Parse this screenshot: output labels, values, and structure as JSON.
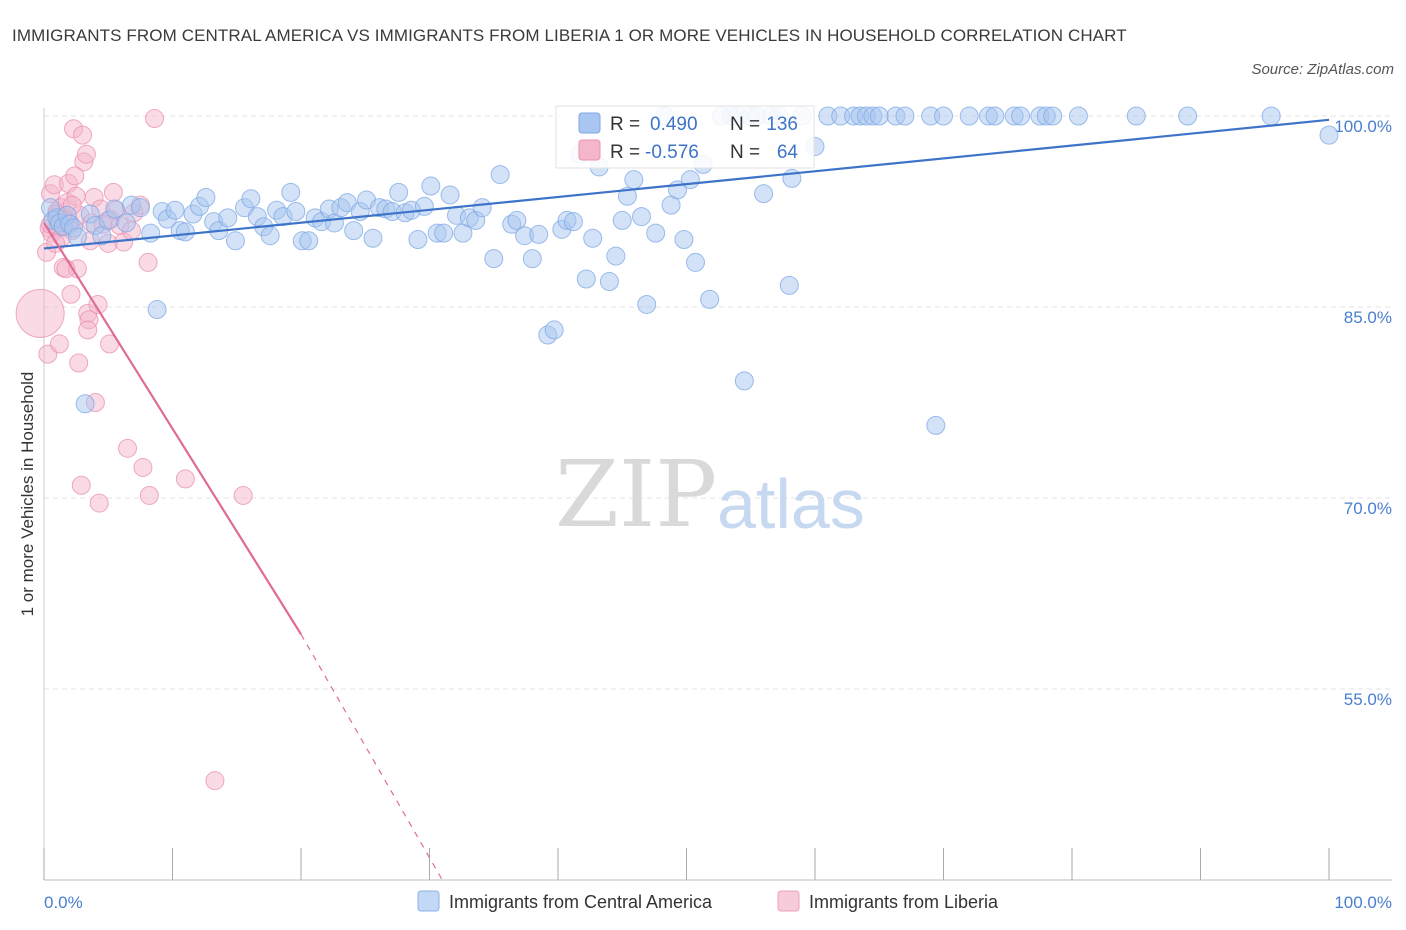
{
  "title": "IMMIGRANTS FROM CENTRAL AMERICA VS IMMIGRANTS FROM LIBERIA 1 OR MORE VEHICLES IN HOUSEHOLD CORRELATION CHART",
  "source": "Source: ZipAtlas.com",
  "watermark": {
    "zip": "ZIP",
    "atlas": "atlas"
  },
  "colors": {
    "blue": "#3d74c8",
    "blue_fill": "#a8c6f0",
    "pink": "#e06b97",
    "pink_fill": "#f4b6cb",
    "grid": "#e3e3e3",
    "axis_text": "#4a7fcf"
  },
  "stats": {
    "blue": {
      "r_label": "R =",
      "r_value": "0.490",
      "n_label": "N =",
      "n_value": "136"
    },
    "pink": {
      "r_label": "R =",
      "r_value": "-0.576",
      "n_label": "N =",
      "n_value": "64"
    }
  },
  "legend": {
    "blue_label": "Immigrants from Central America",
    "pink_label": "Immigrants from Liberia"
  },
  "chart_data": {
    "type": "scatter",
    "title": "IMMIGRANTS FROM CENTRAL AMERICA VS IMMIGRANTS FROM LIBERIA 1 OR MORE VEHICLES IN HOUSEHOLD CORRELATION CHART",
    "xlabel": "",
    "ylabel": "1 or more Vehicles in Household",
    "x_range": [
      0,
      100
    ],
    "y_range": [
      40,
      100
    ],
    "x_ticks": [
      "0.0%",
      "100.0%"
    ],
    "y_ticks": [
      {
        "value": 100,
        "label": "100.0%"
      },
      {
        "value": 85,
        "label": "85.0%"
      },
      {
        "value": 70,
        "label": "70.0%"
      },
      {
        "value": 55,
        "label": "55.0%"
      }
    ],
    "grid": true,
    "legend_position": "bottom",
    "series": [
      {
        "name": "Immigrants from Central America",
        "color": "#3d74c8",
        "trend": {
          "x": [
            0,
            100
          ],
          "y": [
            89.6,
            99.7
          ]
        },
        "points": [
          [
            0.5,
            92.8
          ],
          [
            0.7,
            91.8
          ],
          [
            1.0,
            92.0
          ],
          [
            1.2,
            91.6
          ],
          [
            1.5,
            91.3
          ],
          [
            1.8,
            92.2
          ],
          [
            2.0,
            91.5
          ],
          [
            2.3,
            91.2
          ],
          [
            2.6,
            90.5
          ],
          [
            3.2,
            77.4
          ],
          [
            3.6,
            92.3
          ],
          [
            4.0,
            91.4
          ],
          [
            4.5,
            90.6
          ],
          [
            5.0,
            91.8
          ],
          [
            5.5,
            92.7
          ],
          [
            6.4,
            91.6
          ],
          [
            6.8,
            93.0
          ],
          [
            7.5,
            92.8
          ],
          [
            8.3,
            90.8
          ],
          [
            8.8,
            84.8
          ],
          [
            9.2,
            92.5
          ],
          [
            9.6,
            91.9
          ],
          [
            10.2,
            92.6
          ],
          [
            10.6,
            91.0
          ],
          [
            11.0,
            90.9
          ],
          [
            11.6,
            92.3
          ],
          [
            12.1,
            92.9
          ],
          [
            12.6,
            93.6
          ],
          [
            13.2,
            91.7
          ],
          [
            13.6,
            91.0
          ],
          [
            14.3,
            92.0
          ],
          [
            14.9,
            90.2
          ],
          [
            15.6,
            92.8
          ],
          [
            16.1,
            93.5
          ],
          [
            16.6,
            92.1
          ],
          [
            17.1,
            91.3
          ],
          [
            17.6,
            90.6
          ],
          [
            18.1,
            92.6
          ],
          [
            18.6,
            92.1
          ],
          [
            19.2,
            94.0
          ],
          [
            19.6,
            92.5
          ],
          [
            20.1,
            90.2
          ],
          [
            20.6,
            90.2
          ],
          [
            21.1,
            92.0
          ],
          [
            21.6,
            91.7
          ],
          [
            22.2,
            92.7
          ],
          [
            22.6,
            91.6
          ],
          [
            23.1,
            92.8
          ],
          [
            23.6,
            93.2
          ],
          [
            24.1,
            91.0
          ],
          [
            24.6,
            92.5
          ],
          [
            25.1,
            93.4
          ],
          [
            25.6,
            90.4
          ],
          [
            26.1,
            92.8
          ],
          [
            26.6,
            92.7
          ],
          [
            27.1,
            92.5
          ],
          [
            27.6,
            94.0
          ],
          [
            28.1,
            92.4
          ],
          [
            28.6,
            92.6
          ],
          [
            29.1,
            90.3
          ],
          [
            29.6,
            92.9
          ],
          [
            30.1,
            94.5
          ],
          [
            30.6,
            90.8
          ],
          [
            31.1,
            90.8
          ],
          [
            31.6,
            93.8
          ],
          [
            32.1,
            92.2
          ],
          [
            32.6,
            90.8
          ],
          [
            33.1,
            92.0
          ],
          [
            33.6,
            91.8
          ],
          [
            34.1,
            92.8
          ],
          [
            35.0,
            88.8
          ],
          [
            35.5,
            95.4
          ],
          [
            36.4,
            91.5
          ],
          [
            36.8,
            91.8
          ],
          [
            37.4,
            90.6
          ],
          [
            38.0,
            88.8
          ],
          [
            38.5,
            90.7
          ],
          [
            39.2,
            82.8
          ],
          [
            39.7,
            83.2
          ],
          [
            40.3,
            91.1
          ],
          [
            40.7,
            91.8
          ],
          [
            41.2,
            91.7
          ],
          [
            41.7,
            97.0
          ],
          [
            42.2,
            87.2
          ],
          [
            42.7,
            90.4
          ],
          [
            43.2,
            96.0
          ],
          [
            44.0,
            87.0
          ],
          [
            44.5,
            89.0
          ],
          [
            45.0,
            91.8
          ],
          [
            45.4,
            93.7
          ],
          [
            45.9,
            95.0
          ],
          [
            46.5,
            92.1
          ],
          [
            46.9,
            85.2
          ],
          [
            47.6,
            90.8
          ],
          [
            48.3,
            100.0
          ],
          [
            48.8,
            93.0
          ],
          [
            49.3,
            94.2
          ],
          [
            49.8,
            90.3
          ],
          [
            50.3,
            95.0
          ],
          [
            50.7,
            88.5
          ],
          [
            51.3,
            96.2
          ],
          [
            51.8,
            85.6
          ],
          [
            52.7,
            100.0
          ],
          [
            53.5,
            100.0
          ],
          [
            54.0,
            100.0
          ],
          [
            54.5,
            79.2
          ],
          [
            55.0,
            100.0
          ],
          [
            55.5,
            100.0
          ],
          [
            56.0,
            93.9
          ],
          [
            56.6,
            100.0
          ],
          [
            57.2,
            100.0
          ],
          [
            58.0,
            86.7
          ],
          [
            58.2,
            95.1
          ],
          [
            59.0,
            100.0
          ],
          [
            60.0,
            97.6
          ],
          [
            61.0,
            100.0
          ],
          [
            62.0,
            100.0
          ],
          [
            63.0,
            100.0
          ],
          [
            63.5,
            100.0
          ],
          [
            64.0,
            100.0
          ],
          [
            64.5,
            100.0
          ],
          [
            65.0,
            100.0
          ],
          [
            66.3,
            100.0
          ],
          [
            67.0,
            100.0
          ],
          [
            69.0,
            100.0
          ],
          [
            69.4,
            75.7
          ],
          [
            70.0,
            100.0
          ],
          [
            72.0,
            100.0
          ],
          [
            73.5,
            100.0
          ],
          [
            74.0,
            100.0
          ],
          [
            75.5,
            100.0
          ],
          [
            76.0,
            100.0
          ],
          [
            77.5,
            100.0
          ],
          [
            78.0,
            100.0
          ],
          [
            78.5,
            100.0
          ],
          [
            80.5,
            100.0
          ],
          [
            85.0,
            100.0
          ],
          [
            89.0,
            100.0
          ],
          [
            95.5,
            100.0
          ],
          [
            100.0,
            98.5
          ]
        ]
      },
      {
        "name": "Immigrants from Liberia",
        "color": "#e06b97",
        "trend": {
          "x": [
            0,
            20
          ],
          "y": [
            91.6,
            59.3
          ],
          "dashed_extension": {
            "x": [
              20,
              31
            ],
            "y": [
              59.3,
              40
            ]
          }
        },
        "points": [
          [
            -0.3,
            84.5
          ],
          [
            0.2,
            89.3
          ],
          [
            0.4,
            91.2
          ],
          [
            0.5,
            93.9
          ],
          [
            0.6,
            90.8
          ],
          [
            0.8,
            94.6
          ],
          [
            1.0,
            92.5
          ],
          [
            1.1,
            91.2
          ],
          [
            1.3,
            92.8
          ],
          [
            1.5,
            88.1
          ],
          [
            1.6,
            92.0
          ],
          [
            1.8,
            93.2
          ],
          [
            1.9,
            94.7
          ],
          [
            2.0,
            91.6
          ],
          [
            2.2,
            91.0
          ],
          [
            2.3,
            99.0
          ],
          [
            2.5,
            93.7
          ],
          [
            2.6,
            88.0
          ],
          [
            2.8,
            92.2
          ],
          [
            3.0,
            98.5
          ],
          [
            3.1,
            96.4
          ],
          [
            3.3,
            97.0
          ],
          [
            3.4,
            84.5
          ],
          [
            3.5,
            84.0
          ],
          [
            3.7,
            91.6
          ],
          [
            3.9,
            93.6
          ],
          [
            4.0,
            77.5
          ],
          [
            4.2,
            85.2
          ],
          [
            4.4,
            92.7
          ],
          [
            4.6,
            91.5
          ],
          [
            5.0,
            90.0
          ],
          [
            5.2,
            91.9
          ],
          [
            5.4,
            94.0
          ],
          [
            5.6,
            92.6
          ],
          [
            5.9,
            91.4
          ],
          [
            6.2,
            90.1
          ],
          [
            6.5,
            73.9
          ],
          [
            7.0,
            92.4
          ],
          [
            7.5,
            93.0
          ],
          [
            7.7,
            72.4
          ],
          [
            8.1,
            88.5
          ],
          [
            8.6,
            99.8
          ],
          [
            0.3,
            81.3
          ],
          [
            1.2,
            82.1
          ],
          [
            2.1,
            86.0
          ],
          [
            2.7,
            80.6
          ],
          [
            3.4,
            83.2
          ],
          [
            5.1,
            82.1
          ],
          [
            1.4,
            90.5
          ],
          [
            2.4,
            95.3
          ],
          [
            0.9,
            90.0
          ],
          [
            1.7,
            88.0
          ],
          [
            2.9,
            71.0
          ],
          [
            4.3,
            69.6
          ],
          [
            8.2,
            70.2
          ],
          [
            11.0,
            71.5
          ],
          [
            15.5,
            70.2
          ],
          [
            13.3,
            47.8
          ],
          [
            0.5,
            91.5
          ],
          [
            1.0,
            92.3
          ],
          [
            6.8,
            91.0
          ],
          [
            3.6,
            90.2
          ],
          [
            2.2,
            93.0
          ],
          [
            1.5,
            91.4
          ]
        ]
      }
    ]
  }
}
